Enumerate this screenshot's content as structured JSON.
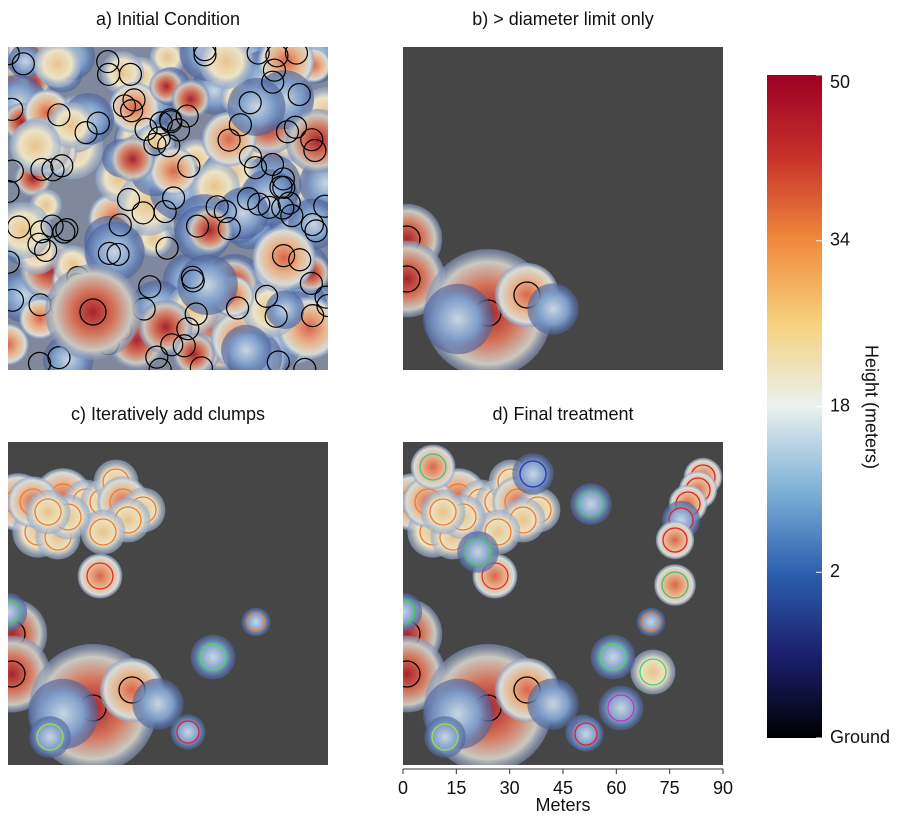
{
  "chart_data": [
    {
      "type": "raster",
      "title": "a) Initial Condition"
    },
    {
      "type": "raster",
      "title": "b) > diameter limit only"
    },
    {
      "type": "raster",
      "title": "c) Iteratively add clumps"
    },
    {
      "type": "raster",
      "title": "d) Final treatment",
      "xlim": [
        0,
        90
      ],
      "xticks": [
        0,
        15,
        30,
        45,
        60,
        75,
        90
      ],
      "xlabel": "Meters"
    },
    {
      "type": "colorbar",
      "label": "Height (meters)",
      "ylim": [
        -14,
        50
      ],
      "yticks": [
        {
          "value": -14,
          "label": "Ground"
        },
        2,
        18,
        34,
        50
      ],
      "colors": [
        "#000000",
        "#1b1f6e",
        "#2d5fb0",
        "#7fb2d8",
        "#e9f1ee",
        "#f6d27e",
        "#f08a3c",
        "#c8312a",
        "#9e0026"
      ]
    }
  ]
}
